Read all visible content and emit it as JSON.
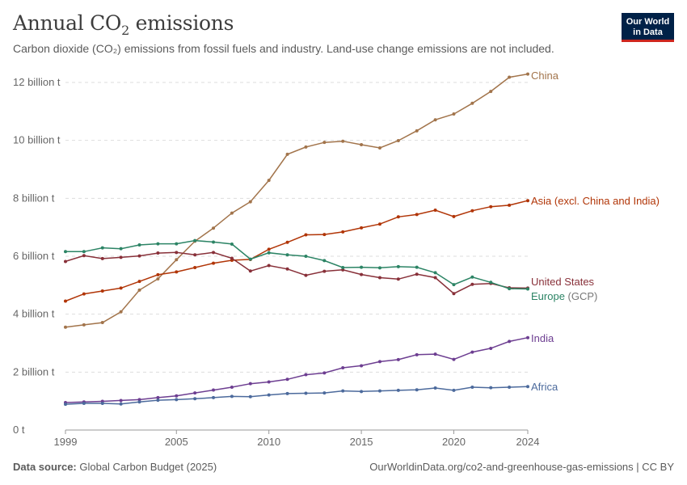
{
  "header": {
    "title_main": "Annual CO",
    "title_sub": "2",
    "title_tail": " emissions",
    "subtitle": "Carbon dioxide (CO₂) emissions from fossil fuels and industry. Land-use change emissions are not included."
  },
  "logo": {
    "line1": "Our World",
    "line2": "in Data",
    "bg": "#002147",
    "accent": "#ce261e"
  },
  "footer": {
    "source_label": "Data source:",
    "source_value": " Global Carbon Budget (2025)",
    "url": "OurWorldinData.org/co2-and-greenhouse-gas-emissions | CC BY"
  },
  "chart_data": {
    "type": "line",
    "title": "Annual CO₂ emissions",
    "xlim": [
      1999,
      2024
    ],
    "ylim": [
      0,
      12
    ],
    "ytick_values": [
      0,
      2,
      4,
      6,
      8,
      10,
      12
    ],
    "ytick_labels": [
      "0 t",
      "2 billion t",
      "4 billion t",
      "6 billion t",
      "8 billion t",
      "10 billion t",
      "12 billion t"
    ],
    "xtick_values": [
      1999,
      2005,
      2010,
      2015,
      2020,
      2024
    ],
    "xtick_labels": [
      "1999",
      "2005",
      "2010",
      "2015",
      "2020",
      "2024"
    ],
    "grid": "horizontal-dashed",
    "legend": "inline-right",
    "x": [
      1999,
      2000,
      2001,
      2002,
      2003,
      2004,
      2005,
      2006,
      2007,
      2008,
      2009,
      2010,
      2011,
      2012,
      2013,
      2014,
      2015,
      2016,
      2017,
      2018,
      2019,
      2020,
      2021,
      2022,
      2023,
      2024
    ],
    "series": [
      {
        "name": "China",
        "color": "#a2744b",
        "values": [
          3.55,
          3.63,
          3.71,
          4.08,
          4.83,
          5.22,
          5.88,
          6.52,
          6.97,
          7.49,
          7.88,
          8.62,
          9.52,
          9.77,
          9.93,
          9.97,
          9.85,
          9.74,
          9.99,
          10.33,
          10.71,
          10.91,
          11.28,
          11.69,
          12.18,
          12.29
        ]
      },
      {
        "name": "Asia (excl. China and India)",
        "color": "#b13507",
        "values": [
          4.45,
          4.7,
          4.8,
          4.9,
          5.13,
          5.36,
          5.46,
          5.61,
          5.76,
          5.86,
          5.89,
          6.24,
          6.48,
          6.74,
          6.75,
          6.84,
          6.98,
          7.11,
          7.36,
          7.44,
          7.59,
          7.37,
          7.57,
          7.71,
          7.76,
          7.92
        ]
      },
      {
        "name": "United States",
        "color": "#883039",
        "values": [
          5.82,
          6.02,
          5.92,
          5.96,
          6.01,
          6.11,
          6.13,
          6.05,
          6.13,
          5.93,
          5.49,
          5.68,
          5.56,
          5.34,
          5.48,
          5.53,
          5.37,
          5.26,
          5.21,
          5.38,
          5.26,
          4.71,
          5.03,
          5.06,
          4.91,
          4.9
        ]
      },
      {
        "name": "Europe",
        "name_suffix": " (GCP)",
        "color": "#2c8465",
        "values": [
          6.16,
          6.16,
          6.29,
          6.26,
          6.39,
          6.43,
          6.43,
          6.54,
          6.49,
          6.42,
          5.9,
          6.12,
          6.05,
          6.0,
          5.85,
          5.61,
          5.62,
          5.6,
          5.64,
          5.62,
          5.43,
          5.02,
          5.28,
          5.1,
          4.88,
          4.87
        ]
      },
      {
        "name": "India",
        "color": "#6d3e91",
        "values": [
          0.95,
          0.97,
          0.99,
          1.02,
          1.05,
          1.12,
          1.18,
          1.28,
          1.38,
          1.48,
          1.6,
          1.66,
          1.75,
          1.91,
          1.97,
          2.15,
          2.22,
          2.36,
          2.43,
          2.6,
          2.62,
          2.44,
          2.69,
          2.82,
          3.06,
          3.19
        ]
      },
      {
        "name": "Africa",
        "color": "#4c6a9c",
        "values": [
          0.89,
          0.92,
          0.92,
          0.9,
          0.97,
          1.03,
          1.05,
          1.08,
          1.12,
          1.16,
          1.15,
          1.21,
          1.26,
          1.27,
          1.28,
          1.35,
          1.33,
          1.35,
          1.37,
          1.39,
          1.45,
          1.37,
          1.48,
          1.46,
          1.48,
          1.5
        ]
      }
    ]
  }
}
